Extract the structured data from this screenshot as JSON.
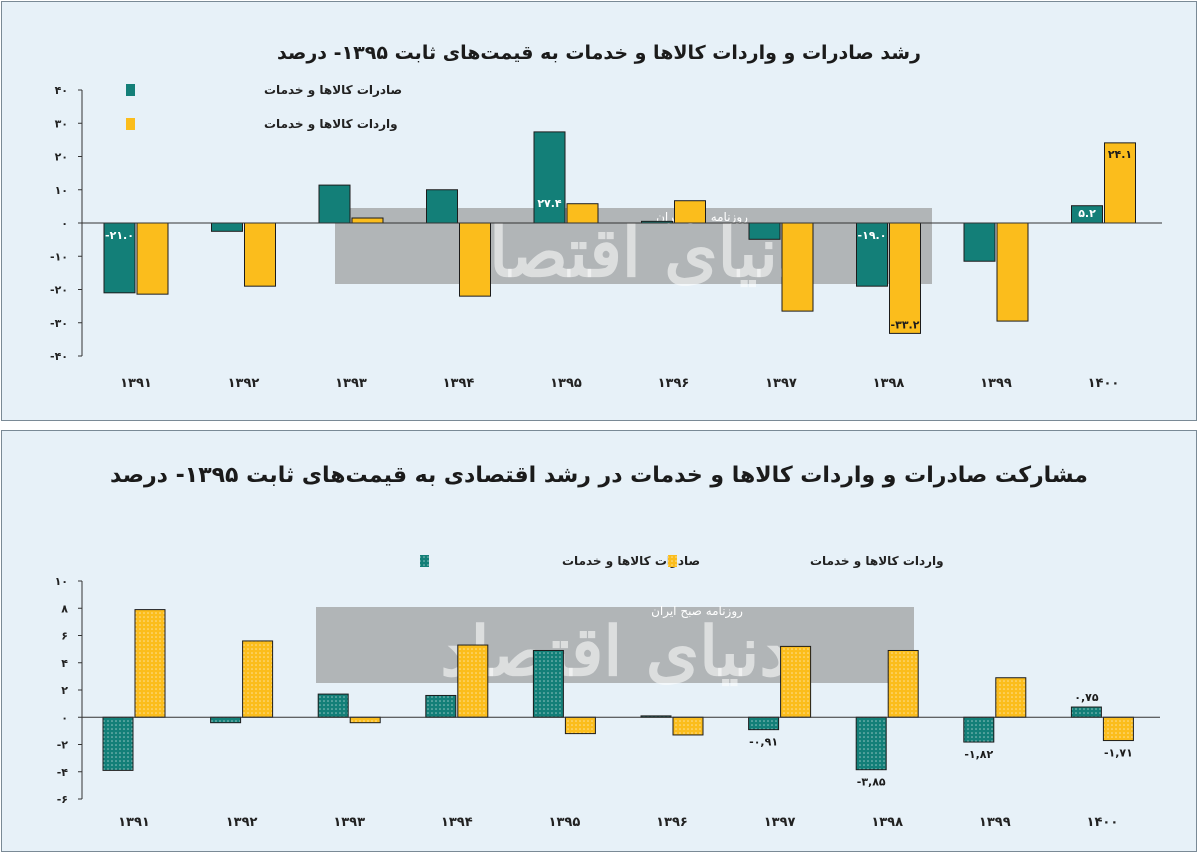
{
  "colors": {
    "exports": "#137f78",
    "imports": "#fbbd1c",
    "panel_bg": "#e7f1f8",
    "watermark_band": "#8f8f8f"
  },
  "watermark": {
    "brand": "دنیای اقتصاد",
    "tagline": "روزنامه صبح ایران"
  },
  "chart_data": [
    {
      "type": "bar",
      "title": "رشد صادرات و واردات کالاها و خدمات به قیمت‌های ثابت ۱۳۹۵- درصد",
      "categories": [
        "۱۳۹۱",
        "۱۳۹۲",
        "۱۳۹۳",
        "۱۳۹۴",
        "۱۳۹۵",
        "۱۳۹۶",
        "۱۳۹۷",
        "۱۳۹۸",
        "۱۳۹۹",
        "۱۴۰۰"
      ],
      "ylim": [
        -40,
        40
      ],
      "yticks": [
        -40,
        -30,
        -20,
        -10,
        0,
        10,
        20,
        30,
        40
      ],
      "ytick_labels": [
        "-۴۰",
        "-۳۰",
        "-۲۰",
        "-۱۰",
        "۰",
        "۱۰",
        "۲۰",
        "۳۰",
        "۴۰"
      ],
      "legend_position": "top-left",
      "series": [
        {
          "name": "صادرات کالاها و خدمات",
          "color": "#137f78",
          "values": [
            -21.0,
            -2.5,
            11.4,
            10.0,
            27.4,
            0.5,
            -4.9,
            -19.0,
            -11.5,
            5.2
          ],
          "labels": [
            "-۲۱.۰",
            "",
            "",
            "",
            "۲۷.۴",
            "",
            "",
            "-۱۹.۰",
            "",
            "۵.۲"
          ]
        },
        {
          "name": "واردات کالاها و خدمات",
          "color": "#fbbd1c",
          "values": [
            -21.4,
            -19.0,
            1.5,
            -22.0,
            5.8,
            6.7,
            -26.5,
            -33.2,
            -29.5,
            24.1
          ],
          "labels": [
            "",
            "",
            "",
            "",
            "",
            "",
            "",
            "-۳۳.۲",
            "",
            "۲۴.۱"
          ]
        }
      ]
    },
    {
      "type": "bar",
      "title": "مشارکت صادرات و واردات کالاها و خدمات در رشد اقتصادی به قیمت‌های ثابت ۱۳۹۵- درصد",
      "categories": [
        "۱۳۹۱",
        "۱۳۹۲",
        "۱۳۹۳",
        "۱۳۹۴",
        "۱۳۹۵",
        "۱۳۹۶",
        "۱۳۹۷",
        "۱۳۹۸",
        "۱۳۹۹",
        "۱۴۰۰"
      ],
      "ylim": [
        -6,
        10
      ],
      "yticks": [
        -6,
        -4,
        -2,
        0,
        2,
        4,
        6,
        8,
        10
      ],
      "ytick_labels": [
        "-۶",
        "-۴",
        "-۲",
        "۰",
        "۲",
        "۴",
        "۶",
        "۸",
        "۱۰"
      ],
      "legend_position": "top-center",
      "series": [
        {
          "name": "صادرات کالاها و خدمات",
          "color": "#137f78",
          "values": [
            -3.9,
            -0.4,
            1.7,
            1.6,
            4.9,
            0.1,
            -0.91,
            -3.85,
            -1.82,
            0.75
          ],
          "labels": [
            "",
            "",
            "",
            "",
            "",
            "",
            "-۰,۹۱",
            "-۳,۸۵",
            "-۱,۸۲",
            "۰,۷۵"
          ]
        },
        {
          "name": "واردات کالاها و خدمات",
          "color": "#fbbd1c",
          "values": [
            7.9,
            5.6,
            -0.4,
            5.3,
            -1.2,
            -1.3,
            5.2,
            4.9,
            2.9,
            -1.71
          ],
          "labels": [
            "",
            "",
            "",
            "",
            "",
            "",
            "",
            "",
            "",
            "-۱,۷۱"
          ]
        }
      ]
    }
  ]
}
